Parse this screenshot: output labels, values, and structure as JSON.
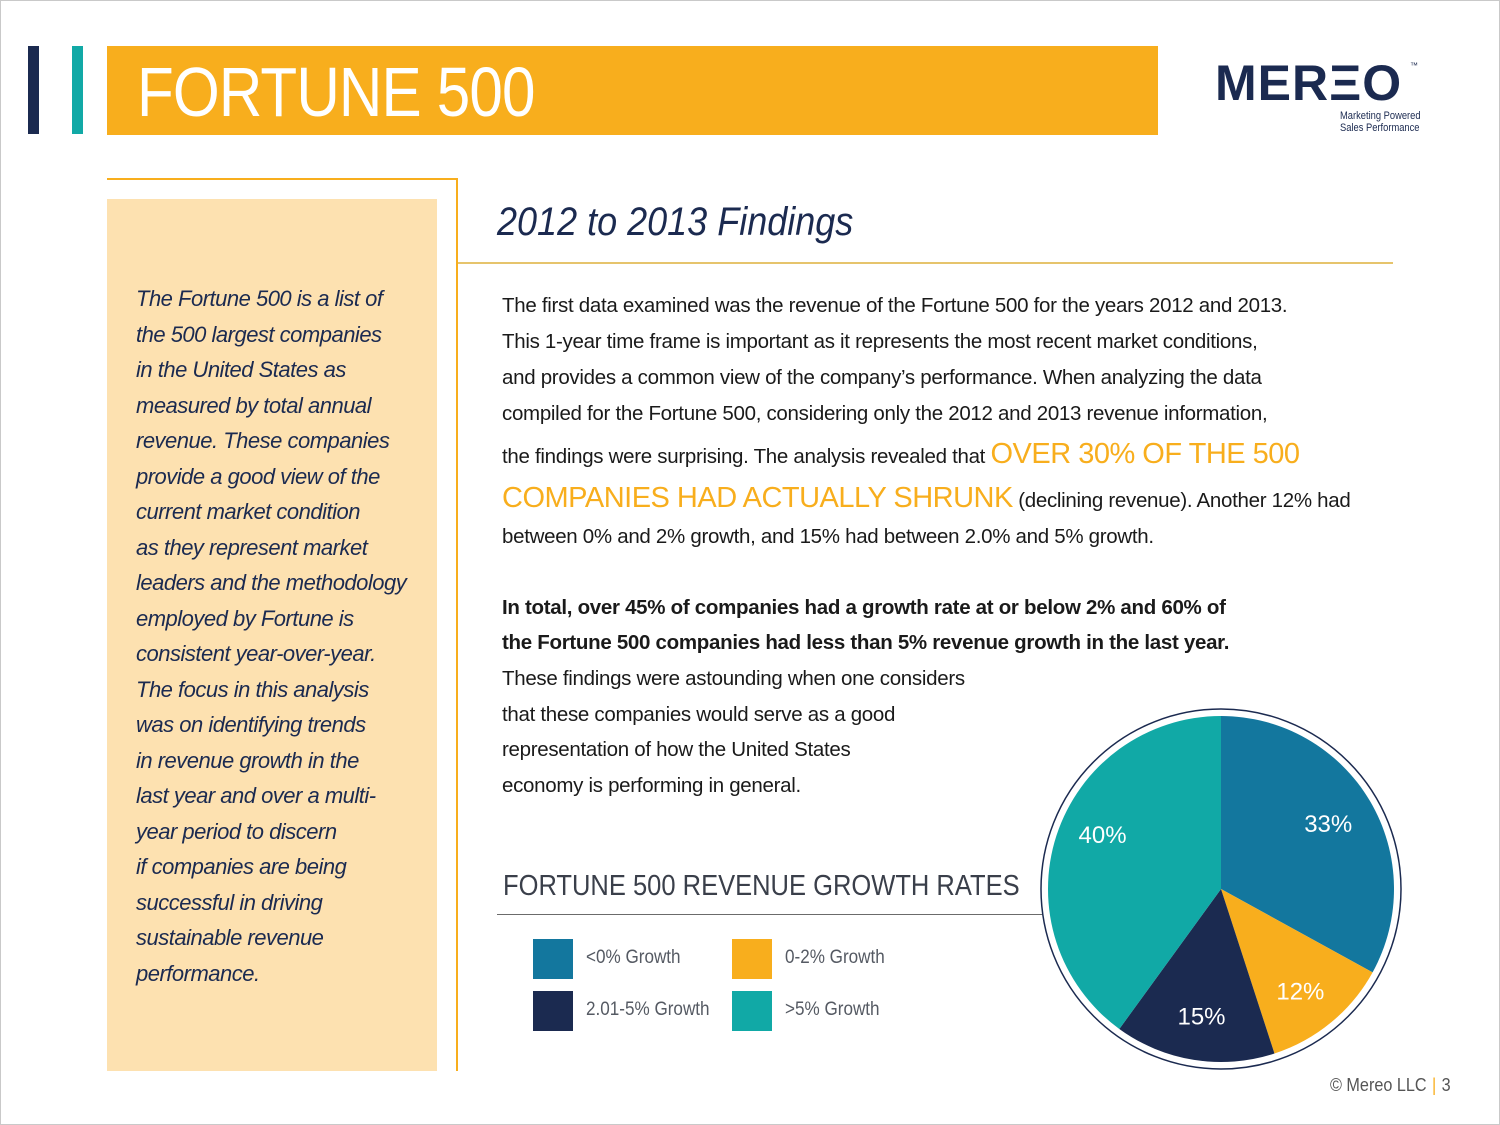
{
  "header": {
    "title": "FORTUNE 500",
    "logo_word": "MERΞO",
    "logo_tm": "™",
    "logo_tagline_1": "Marketing Powered",
    "logo_tagline_2": "Sales Performance"
  },
  "sidebar": {
    "lines": [
      "The Fortune 500 is a list of",
      "the 500 largest companies",
      "in the United States as",
      "measured by total annual",
      "revenue. These companies",
      "provide a good view of the",
      "current market condition",
      "as they represent market",
      "leaders and the methodology",
      "employed by Fortune is",
      "consistent year-over-year.",
      "The focus in this analysis",
      "was on identifying trends",
      "in revenue growth in the",
      "last year and over a multi-",
      "year period to discern",
      "if companies are being",
      "successful in driving",
      "sustainable revenue",
      "performance."
    ]
  },
  "main": {
    "heading": "2012 to 2013 Findings",
    "p1": {
      "l1": "The first data examined was the revenue of the Fortune 500 for the years 2012 and 2013.",
      "l2": "This 1-year time frame is important as it represents the most recent market conditions,",
      "l3": "and provides a common view of the company’s performance. When analyzing the data",
      "l4": "compiled for the Fortune 500, considering only the 2012 and 2013 revenue information,",
      "l5_pre": "the findings were surprising. The analysis revealed that ",
      "l5_hl": "OVER 30% OF THE 500",
      "l6_hl": "COMPANIES HAD ACTUALLY SHRUNK",
      "l6_post": " (declining revenue). Another 12% had",
      "l7": "between 0% and 2% growth, and 15% had between 2.0% and 5% growth."
    },
    "p2": {
      "l1": "In total, over 45% of companies had a growth rate at or below 2% and 60% of",
      "l2": "the Fortune 500 companies had less than 5% revenue growth in the last year.",
      "l3": "These findings were astounding when one considers",
      "l4": "that these companies would serve as a good",
      "l5": "representation of how the United States",
      "l6": "economy is performing in general."
    }
  },
  "chart_data": {
    "type": "pie",
    "title": "FORTUNE 500 REVENUE GROWTH RATES",
    "labels": [
      "<0% Growth",
      "0-2% Growth",
      "2.01-5% Growth",
      ">5% Growth"
    ],
    "values": [
      33,
      12,
      15,
      40
    ],
    "value_labels": [
      "33%",
      "12%",
      "15%",
      "40%"
    ],
    "colors": [
      "#13779e",
      "#f8ae1d",
      "#1b2a50",
      "#11a9a6"
    ],
    "legend_position": "left"
  },
  "footer": {
    "copyright": "© Mereo LLC",
    "separator": "|",
    "page_number": "3"
  }
}
